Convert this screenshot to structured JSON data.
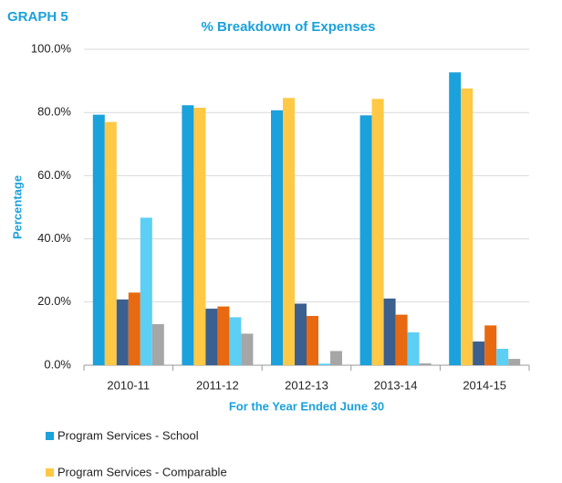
{
  "chart_data": {
    "type": "bar",
    "label": "GRAPH 5",
    "title": "% Breakdown of Expenses",
    "y_label": "Percentage",
    "x_label": "For the Year Ended June 30",
    "categories": [
      "2010-11",
      "2011-12",
      "2012-13",
      "2013-14",
      "2014-15"
    ],
    "series": [
      {
        "name": "Program Services - School",
        "color": "#1ba1db",
        "values": [
          79.3,
          82.3,
          80.7,
          79.1,
          92.7
        ]
      },
      {
        "name": "Program Services - Comparable",
        "color": "#ffc845",
        "values": [
          77,
          81.5,
          84.6,
          84.3,
          87.6
        ]
      },
      {
        "color": "#3b5f8f",
        "values": [
          20.8,
          17.9,
          19.5,
          21.1,
          7.5
        ]
      },
      {
        "color": "#e8690f",
        "values": [
          23,
          18.6,
          15.6,
          16,
          12.6
        ]
      },
      {
        "color": "#5ccff5",
        "values": [
          46.7,
          15.2,
          0.5,
          10.4,
          5.2
        ]
      },
      {
        "color": "#a6a6a6",
        "values": [
          13,
          10,
          4.5,
          0.6,
          2
        ]
      }
    ],
    "ylim": [
      0,
      100
    ],
    "yticks": [
      {
        "value": 0,
        "label": "0.0%"
      },
      {
        "value": 20,
        "label": "20.0%"
      },
      {
        "value": 40,
        "label": "40.0%"
      },
      {
        "value": 60,
        "label": "60.0%"
      },
      {
        "value": 80,
        "label": "80.0%"
      },
      {
        "value": 100,
        "label": "100.0%"
      }
    ],
    "grid": true
  }
}
